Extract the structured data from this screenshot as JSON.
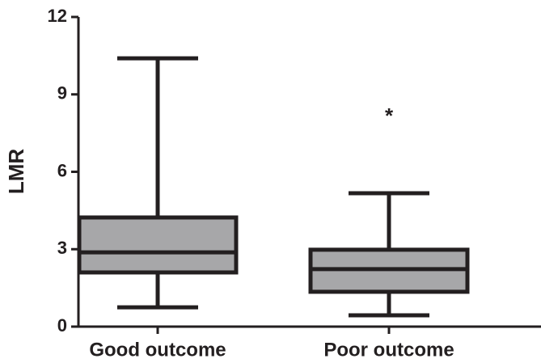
{
  "chart_data": {
    "type": "box",
    "ylabel": "LMR",
    "categories": [
      "Good outcome",
      "Poor outcome"
    ],
    "boxes": [
      {
        "min": 0.75,
        "q1": 2.1,
        "median": 2.88,
        "q3": 4.23,
        "max": 10.4
      },
      {
        "min": 0.44,
        "q1": 1.35,
        "median": 2.23,
        "q3": 2.98,
        "max": 5.17
      }
    ],
    "color": "#a7a7a9",
    "ylim": [
      0,
      12
    ],
    "yticks": [
      0,
      3,
      6,
      9,
      12
    ],
    "annotations": [
      {
        "text": "*",
        "category": "Poor outcome",
        "y": 8.3
      }
    ]
  }
}
